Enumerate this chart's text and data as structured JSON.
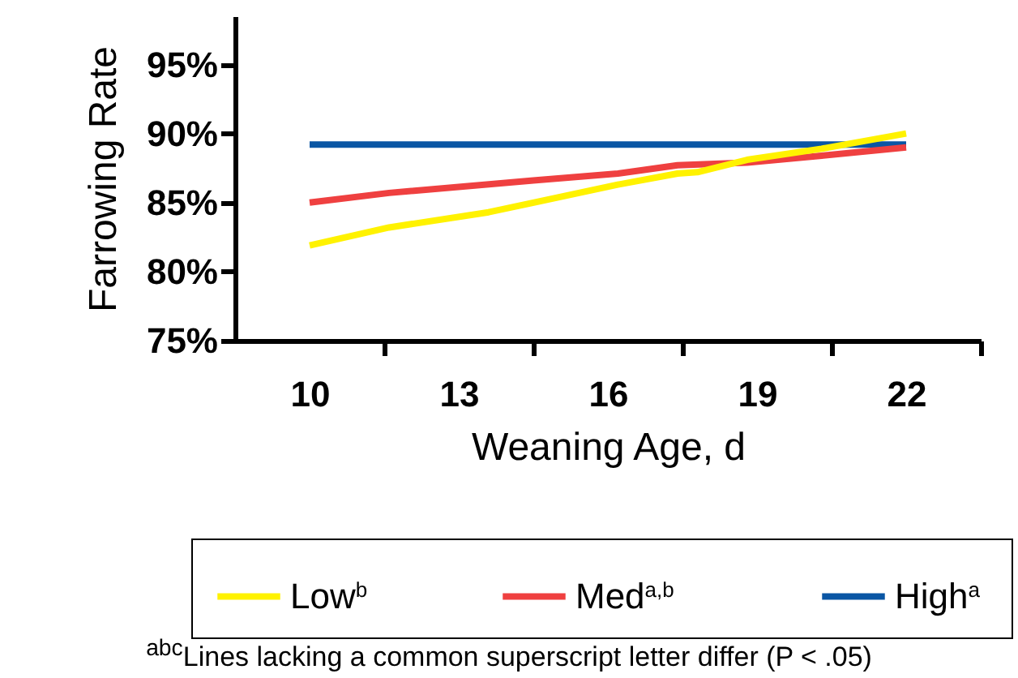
{
  "chart_data": {
    "type": "line",
    "xlabel": "Weaning Age, d",
    "ylabel": "Farrowing Rate",
    "xlim": [
      8.5,
      23.5
    ],
    "xticks": [
      10,
      13,
      16,
      19,
      22,
      {
        "value": 11.5,
        "label": null
      },
      {
        "value": 14.5,
        "label": null
      },
      {
        "value": 17.5,
        "label": null
      },
      {
        "value": 20.5,
        "label": null
      },
      {
        "value": 23.5,
        "label": null
      }
    ],
    "ylim": [
      75,
      98.5
    ],
    "yticks": [
      {
        "value": 75,
        "label": "75%"
      },
      {
        "value": 80,
        "label": "80%"
      },
      {
        "value": 85,
        "label": "85%"
      },
      {
        "value": 90,
        "label": "90%"
      },
      {
        "value": 95,
        "label": "95%"
      }
    ],
    "legend": "bottom",
    "series": [
      {
        "name": "Low$^{b}$",
        "color": "#fff200",
        "x": [
          10,
          11.6,
          13.6,
          16.2,
          17.4,
          17.8,
          18.8,
          20.3,
          22
        ],
        "values": [
          81.9,
          83.2,
          84.3,
          86.3,
          87.1,
          87.2,
          88.1,
          88.9,
          90.0
        ]
      },
      {
        "name": "Med$^{a,b}$",
        "color": "#ef4040",
        "x": [
          10,
          11.6,
          14.5,
          16.2,
          17.4,
          18.8,
          20.3,
          22
        ],
        "values": [
          85.0,
          85.7,
          86.6,
          87.1,
          87.7,
          87.9,
          88.4,
          89.0
        ]
      },
      {
        "name": "High$^{a}$",
        "color": "#0a56a4",
        "x": [
          10,
          22
        ],
        "values": [
          89.2,
          89.2
        ]
      }
    ],
    "annotations": [
      "$^{abc}$Lines lacking a common superscript letter differ (P < .05)"
    ]
  }
}
